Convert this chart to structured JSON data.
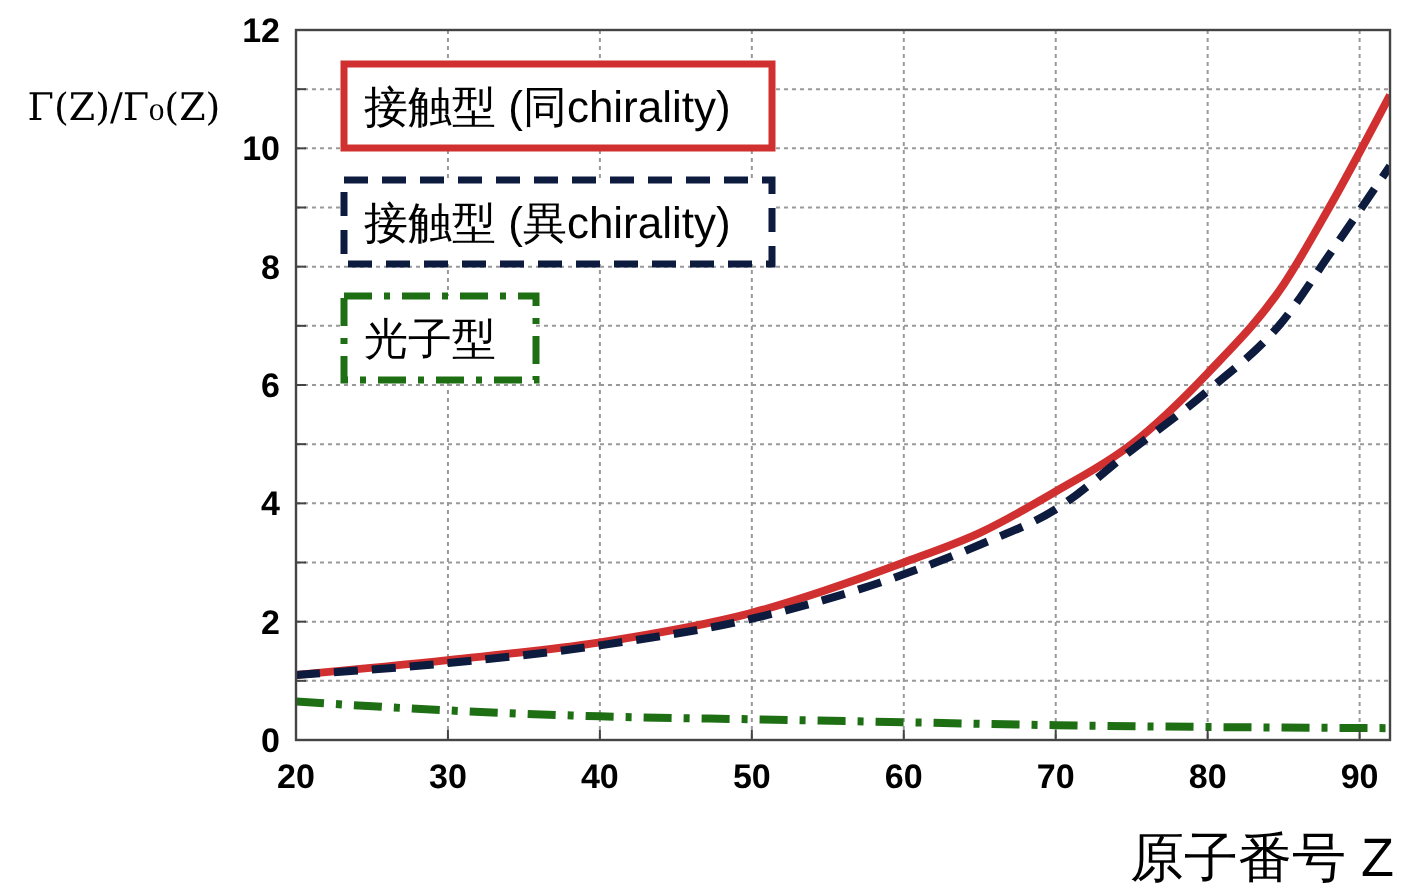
{
  "chart_data": {
    "type": "line",
    "xlabel": "原子番号 Z",
    "ylabel": "Γ(Z)/Γ₀(Z)",
    "xlim": [
      20,
      92
    ],
    "xticks": [
      20,
      30,
      40,
      50,
      60,
      70,
      80,
      90
    ],
    "ylim": [
      0,
      12
    ],
    "yticks": [
      0,
      {
        "value": 1,
        "label": null
      },
      2,
      {
        "value": 3,
        "label": null
      },
      4,
      {
        "value": 5,
        "label": null
      },
      6,
      {
        "value": 7,
        "label": null
      },
      8,
      {
        "value": 9,
        "label": null
      },
      10,
      {
        "value": 11,
        "label": null
      },
      12
    ],
    "grid": true,
    "legend": "top left",
    "series": [
      {
        "name": "接触型 (同chirality)",
        "color": "#d0302f",
        "line_style": "solid",
        "x": [
          20,
          30,
          40,
          50,
          60,
          65,
          70,
          75,
          80,
          85,
          88,
          92
        ],
        "values": [
          1.1,
          1.35,
          1.65,
          2.15,
          3.0,
          3.5,
          4.2,
          5.0,
          6.2,
          7.7,
          9.0,
          10.9
        ]
      },
      {
        "name": "接触型 (異chirality)",
        "color": "#0d1b3e",
        "line_style": "dashed",
        "x": [
          20,
          30,
          40,
          50,
          60,
          65,
          70,
          75,
          80,
          85,
          88,
          92
        ],
        "values": [
          1.1,
          1.3,
          1.6,
          2.05,
          2.8,
          3.3,
          3.9,
          4.9,
          5.9,
          7.1,
          8.2,
          9.7
        ]
      },
      {
        "name": "光子型",
        "color": "#1e6e14",
        "line_style": "dashdot",
        "x": [
          20,
          30,
          40,
          50,
          60,
          70,
          80,
          92
        ],
        "values": [
          0.65,
          0.5,
          0.4,
          0.35,
          0.3,
          0.25,
          0.22,
          0.2
        ]
      }
    ]
  }
}
